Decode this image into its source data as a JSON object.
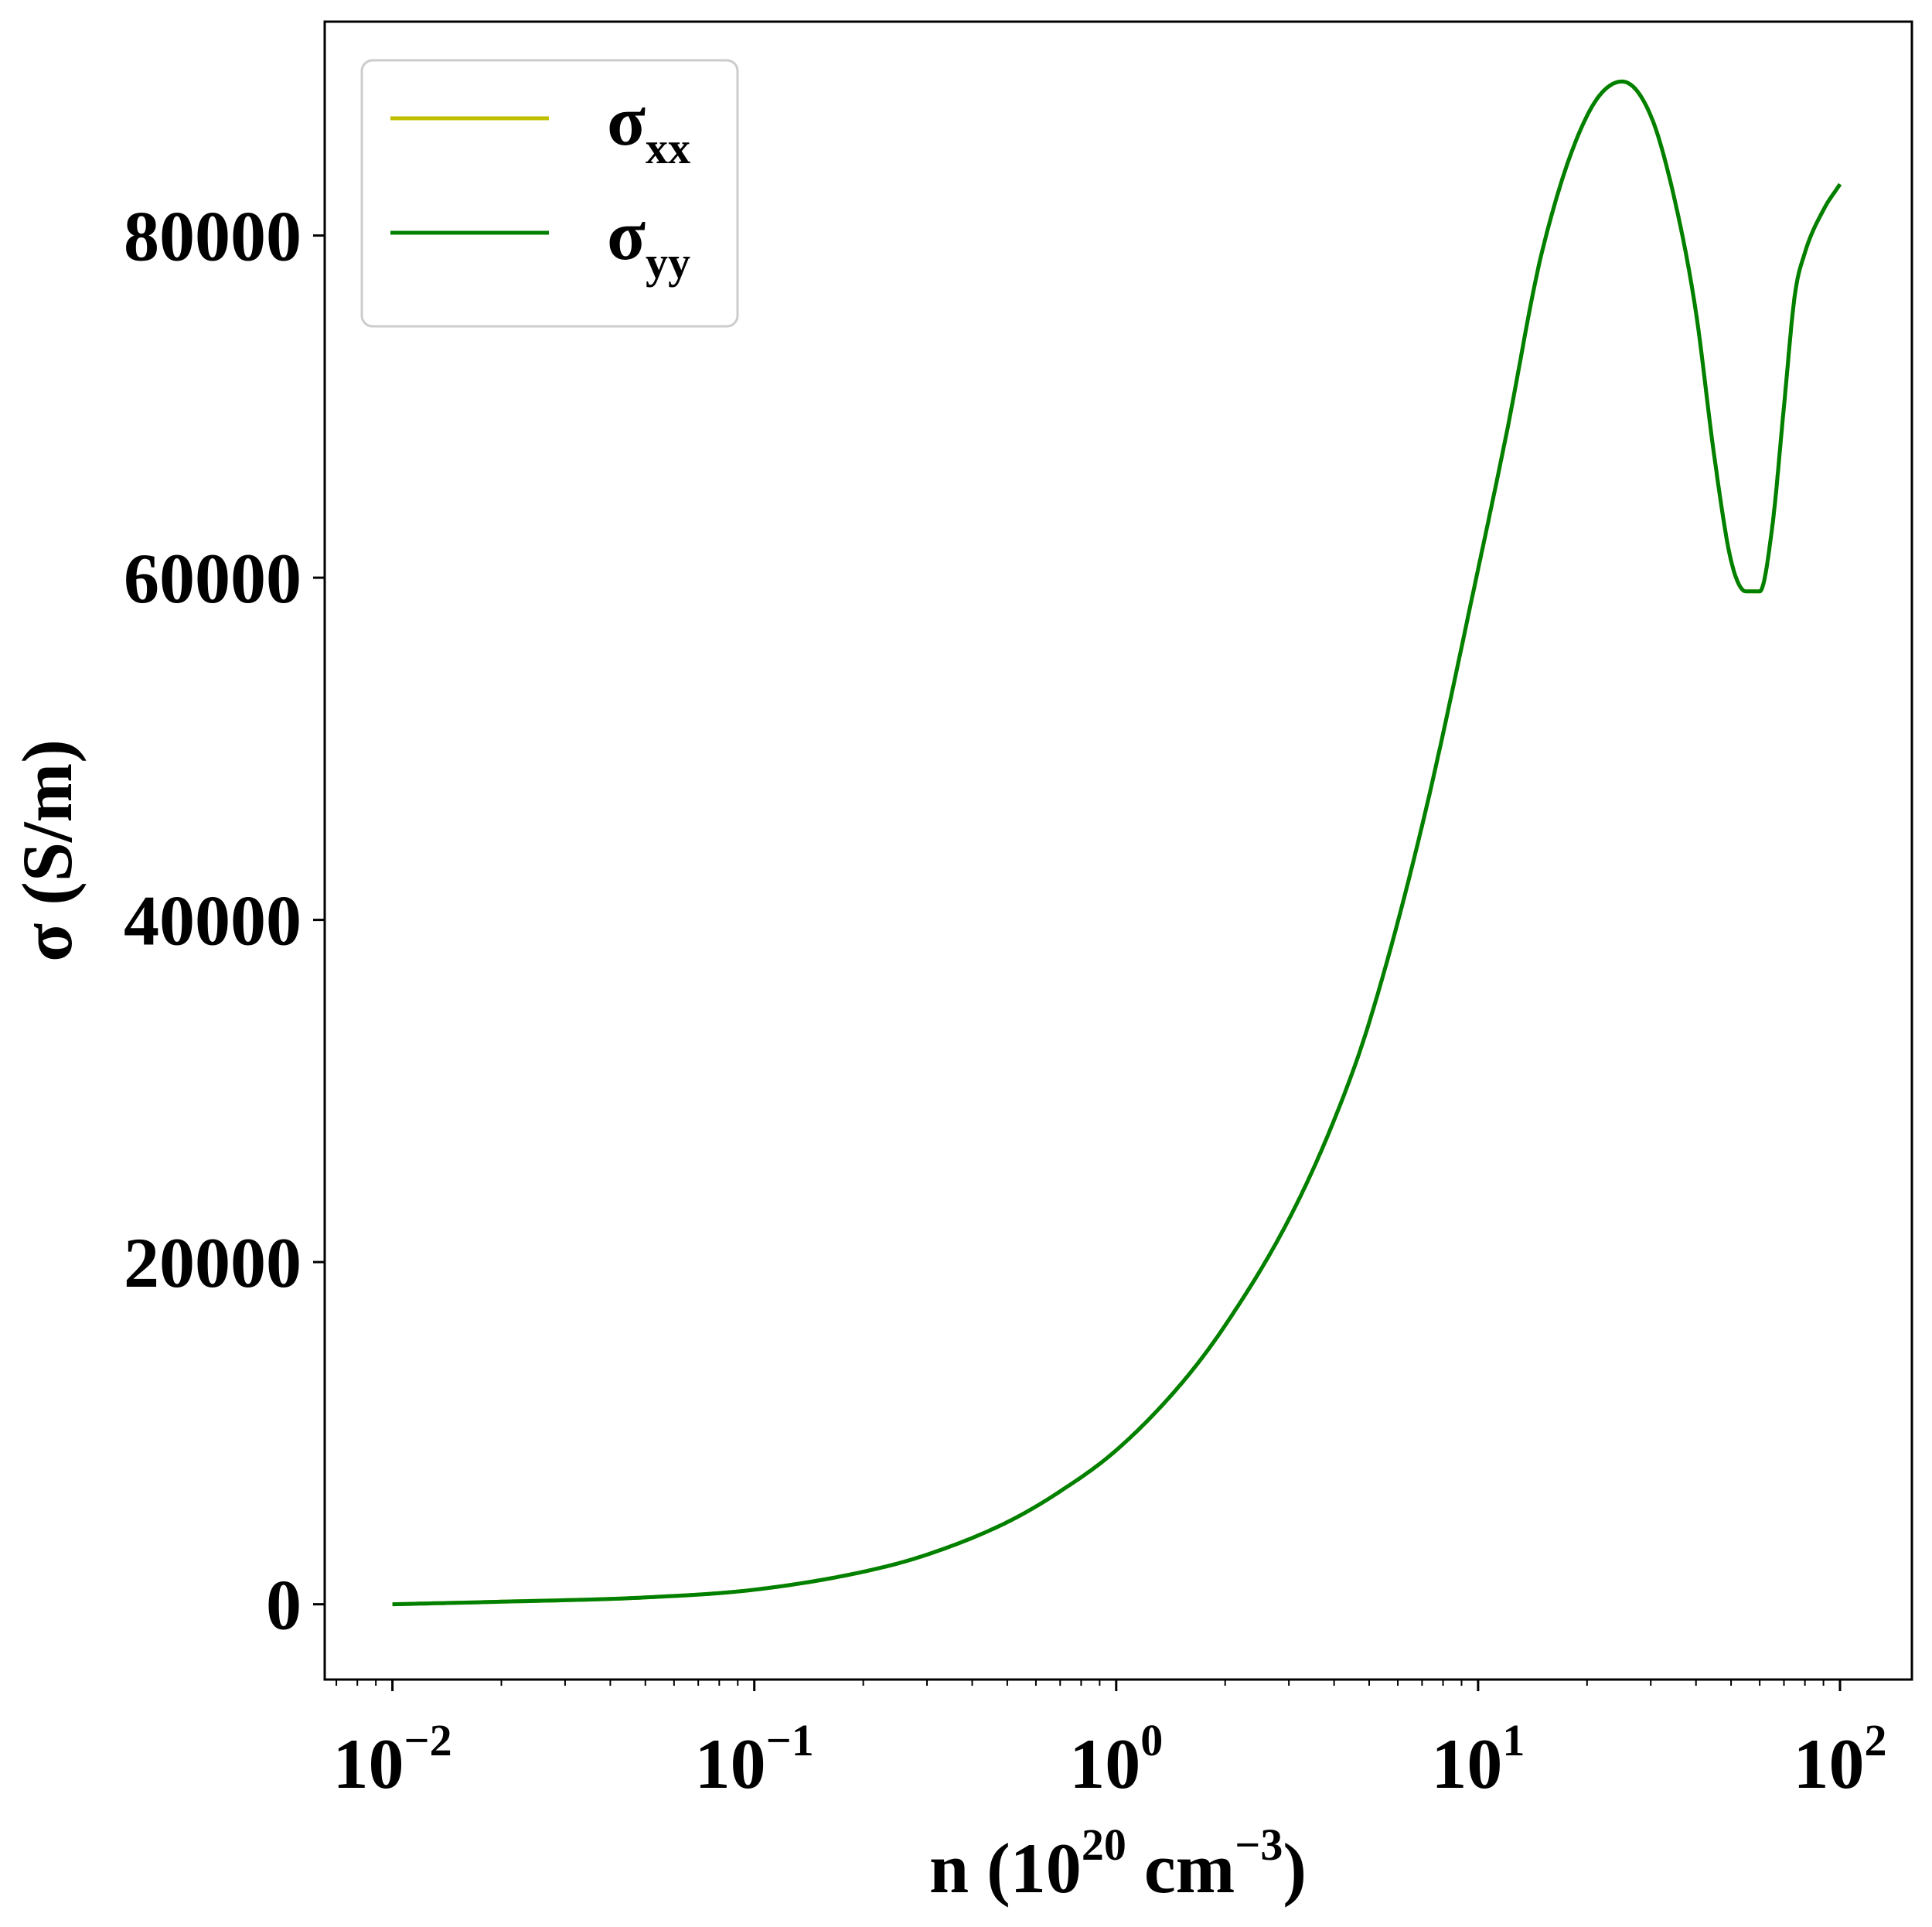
{
  "chart_data": {
    "type": "line",
    "xscale": "log",
    "yscale": "linear",
    "xlim": [
      0.0065,
      158
    ],
    "ylim": [
      -4400,
      92500
    ],
    "xticks": [
      {
        "value": 0.01,
        "base": "10",
        "exp": "−2"
      },
      {
        "value": 0.1,
        "base": "10",
        "exp": "−1"
      },
      {
        "value": 1,
        "base": "10",
        "exp": "0"
      },
      {
        "value": 10,
        "base": "10",
        "exp": "1"
      },
      {
        "value": 100,
        "base": "10",
        "exp": "2"
      }
    ],
    "yticks": [
      {
        "value": 0,
        "label": "0"
      },
      {
        "value": 20000,
        "label": "20000"
      },
      {
        "value": 40000,
        "label": "40000"
      },
      {
        "value": 60000,
        "label": "60000"
      },
      {
        "value": 80000,
        "label": "80000"
      }
    ],
    "xlabel": {
      "pre": "n (10",
      "sup1": "20",
      "mid": " cm",
      "sup2": "−3",
      "post": ")"
    },
    "ylabel": "σ (S/m)",
    "legend": {
      "position": "top-left",
      "entries": [
        {
          "base": "σ",
          "sub": "xx",
          "color": "#bfbf00"
        },
        {
          "base": "σ",
          "sub": "yy",
          "color": "#008000"
        }
      ]
    },
    "grid": false,
    "series": [
      {
        "name": "σxx",
        "color": "#bfbf00",
        "x": [
          0.01,
          0.02,
          0.05,
          0.1,
          0.2,
          0.3,
          0.5,
          0.7,
          1,
          1.5,
          2,
          3,
          4,
          5,
          7,
          10,
          12,
          15,
          20,
          25,
          30,
          35,
          40,
          45,
          50,
          55,
          60,
          65,
          70,
          75,
          80,
          90,
          100
        ],
        "y": [
          0,
          150,
          400,
          850,
          1900,
          2900,
          4800,
          6600,
          9000,
          12800,
          16300,
          22500,
          28300,
          34000,
          45500,
          60500,
          68500,
          79000,
          87000,
          89000,
          87000,
          82000,
          75500,
          67000,
          61000,
          59200,
          59200,
          63000,
          70000,
          76500,
          79000,
          81500,
          83000
        ]
      },
      {
        "name": "σyy",
        "color": "#008000",
        "x": [
          0.01,
          0.02,
          0.05,
          0.1,
          0.2,
          0.3,
          0.5,
          0.7,
          1,
          1.5,
          2,
          3,
          4,
          5,
          7,
          10,
          12,
          15,
          20,
          25,
          30,
          35,
          40,
          45,
          50,
          55,
          60,
          65,
          70,
          75,
          80,
          90,
          100
        ],
        "y": [
          0,
          150,
          400,
          850,
          1900,
          2900,
          4800,
          6600,
          9000,
          12800,
          16300,
          22500,
          28300,
          34000,
          45500,
          60500,
          68500,
          79000,
          87000,
          89000,
          87000,
          82000,
          75500,
          67000,
          61000,
          59200,
          59200,
          63000,
          70000,
          76500,
          79000,
          81500,
          83000
        ]
      }
    ]
  }
}
